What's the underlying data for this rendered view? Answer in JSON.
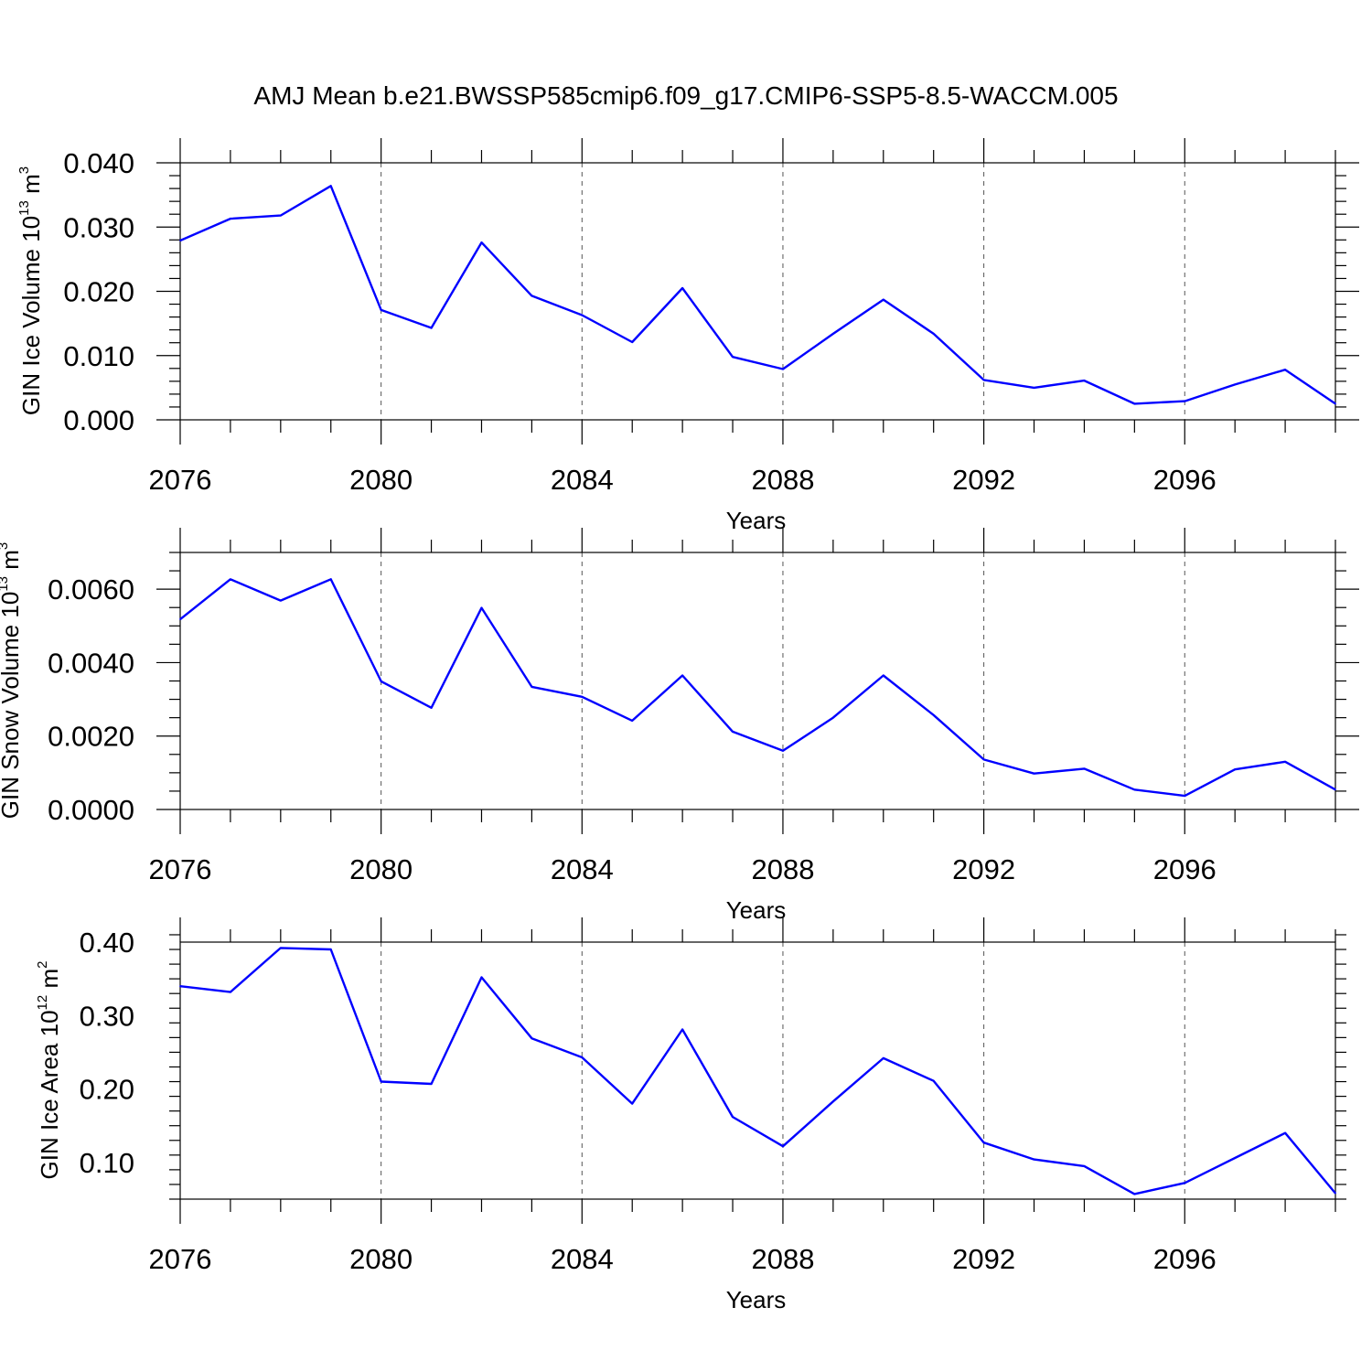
{
  "figure_title": "AMJ Mean b.e21.BWSSP585cmip6.f09_g17.CMIP6-SSP5-8.5-WACCM.005",
  "colors": {
    "line": "#0000ff",
    "axis": "#000000",
    "grid": "#000000"
  },
  "chart_data": [
    {
      "type": "line",
      "xlabel": "Years",
      "ylabel": {
        "text": "GIN Ice Volume 10",
        "exp": "13",
        "unit": " m",
        "unit_exp": "3"
      },
      "xlim": [
        2076,
        2099
      ],
      "ylim": [
        0.0,
        0.04
      ],
      "grid": "vertical dashed at major x ticks",
      "x_ticks": [
        2076,
        2080,
        2084,
        2088,
        2092,
        2096
      ],
      "x_tick_labels": [
        "2076",
        "2080",
        "2084",
        "2088",
        "2092",
        "2096"
      ],
      "y_ticks": [
        0.0,
        0.01,
        0.02,
        0.03,
        0.04
      ],
      "y_tick_labels": [
        "0.000",
        "0.010",
        "0.020",
        "0.030",
        "0.040"
      ],
      "y_minor_step": 0.002,
      "x": [
        2076,
        2077,
        2078,
        2079,
        2080,
        2081,
        2082,
        2083,
        2084,
        2085,
        2086,
        2087,
        2088,
        2089,
        2090,
        2091,
        2092,
        2093,
        2094,
        2095,
        2096,
        2097,
        2098,
        2099
      ],
      "series": [
        {
          "values": [
            0.0279,
            0.0313,
            0.0318,
            0.0364,
            0.0171,
            0.0143,
            0.0276,
            0.0193,
            0.0163,
            0.0121,
            0.0205,
            0.0098,
            0.0079,
            0.0134,
            0.0187,
            0.0134,
            0.0062,
            0.005,
            0.0061,
            0.0025,
            0.0029,
            0.0055,
            0.0078,
            0.0025
          ]
        }
      ]
    },
    {
      "type": "line",
      "xlabel": "Years",
      "ylabel": {
        "text": "GIN Snow Volume 10",
        "exp": "13",
        "unit": " m",
        "unit_exp": "3"
      },
      "xlim": [
        2076,
        2099
      ],
      "ylim": [
        0.0,
        0.007
      ],
      "grid": "vertical dashed at major x ticks",
      "x_ticks": [
        2076,
        2080,
        2084,
        2088,
        2092,
        2096
      ],
      "x_tick_labels": [
        "2076",
        "2080",
        "2084",
        "2088",
        "2092",
        "2096"
      ],
      "y_ticks": [
        0.0,
        0.002,
        0.004,
        0.006
      ],
      "y_tick_labels": [
        "0.0000",
        "0.0020",
        "0.0040",
        "0.0060"
      ],
      "y_minor_step": 0.0005,
      "x": [
        2076,
        2077,
        2078,
        2079,
        2080,
        2081,
        2082,
        2083,
        2084,
        2085,
        2086,
        2087,
        2088,
        2089,
        2090,
        2091,
        2092,
        2093,
        2094,
        2095,
        2096,
        2097,
        2098,
        2099
      ],
      "series": [
        {
          "values": [
            0.00518,
            0.00627,
            0.00569,
            0.00627,
            0.00349,
            0.00277,
            0.00549,
            0.00334,
            0.00307,
            0.00242,
            0.00365,
            0.00212,
            0.0016,
            0.0025,
            0.00365,
            0.00257,
            0.00136,
            0.00098,
            0.00111,
            0.00054,
            0.00037,
            0.00109,
            0.0013,
            0.00054
          ]
        }
      ]
    },
    {
      "type": "line",
      "xlabel": "Years",
      "ylabel": {
        "text": "GIN Ice Area 10",
        "exp": "12",
        "unit": " m",
        "unit_exp": "2"
      },
      "xlim": [
        2076,
        2099
      ],
      "ylim": [
        0.05,
        0.4
      ],
      "grid": "vertical dashed at major x ticks",
      "x_ticks": [
        2076,
        2080,
        2084,
        2088,
        2092,
        2096
      ],
      "x_tick_labels": [
        "2076",
        "2080",
        "2084",
        "2088",
        "2092",
        "2096"
      ],
      "y_ticks": [
        0.1,
        0.2,
        0.3,
        0.4
      ],
      "y_tick_labels": [
        "0.10",
        "0.20",
        "0.30",
        "0.40"
      ],
      "y_minor_step": 0.02,
      "x": [
        2076,
        2077,
        2078,
        2079,
        2080,
        2081,
        2082,
        2083,
        2084,
        2085,
        2086,
        2087,
        2088,
        2089,
        2090,
        2091,
        2092,
        2093,
        2094,
        2095,
        2096,
        2097,
        2098,
        2099
      ],
      "series": [
        {
          "values": [
            0.34,
            0.332,
            0.392,
            0.39,
            0.21,
            0.207,
            0.352,
            0.269,
            0.243,
            0.18,
            0.281,
            0.162,
            0.122,
            0.183,
            0.242,
            0.211,
            0.127,
            0.104,
            0.095,
            0.057,
            0.072,
            0.106,
            0.14,
            0.058
          ]
        }
      ]
    }
  ]
}
